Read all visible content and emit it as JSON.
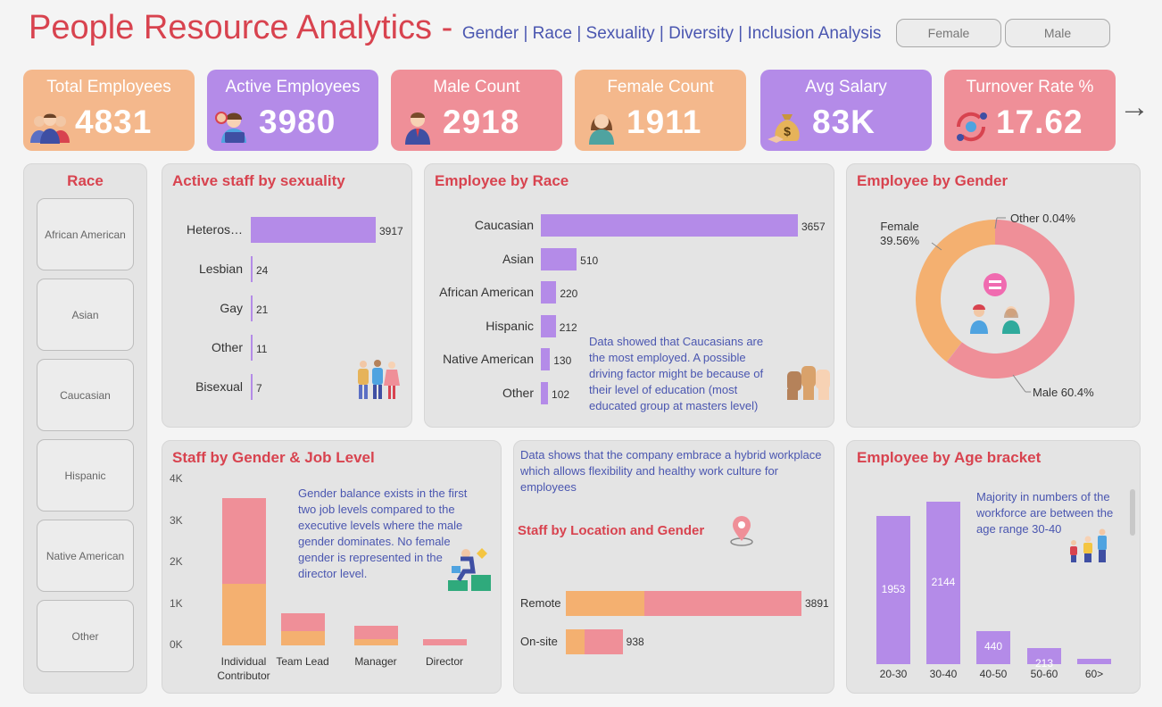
{
  "header": {
    "title": "People Resource Analytics",
    "dash": " - ",
    "subtitle": "Gender | Race | Sexuality | Diversity | Inclusion Analysis",
    "gender_slicer": [
      "Female",
      "Male"
    ]
  },
  "kpis": [
    {
      "label": "Total Employees",
      "value": "4831",
      "color": "#f4b88c",
      "icon": "team-icon"
    },
    {
      "label": "Active Employees",
      "value": "3980",
      "color": "#b48be8",
      "icon": "working-employee-icon"
    },
    {
      "label": "Male Count",
      "value": "2918",
      "color": "#ef8f98",
      "icon": "male-person-icon"
    },
    {
      "label": "Female Count",
      "value": "1911",
      "color": "#f4b88c",
      "icon": "female-person-icon"
    },
    {
      "label": "Avg Salary",
      "value": "83K",
      "color": "#b48be8",
      "icon": "money-bag-icon"
    },
    {
      "label": "Turnover Rate %",
      "value": "17.62",
      "color": "#ef8f98",
      "icon": "turnover-cycle-icon"
    }
  ],
  "next_arrow": "→",
  "race_slicer": {
    "title": "Race",
    "items": [
      "African American",
      "Asian",
      "Caucasian",
      "Hispanic",
      "Native American",
      "Other"
    ]
  },
  "sexuality": {
    "title": "Active staff by sexuality",
    "chart_data": {
      "type": "bar",
      "orientation": "horizontal",
      "categories": [
        "Heteros…",
        "Lesbian",
        "Gay",
        "Other",
        "Bisexual"
      ],
      "values": [
        3917,
        24,
        21,
        11,
        7
      ],
      "color": "#b48be8"
    }
  },
  "race": {
    "title": "Employee by Race",
    "chart_data": {
      "type": "bar",
      "orientation": "horizontal",
      "categories": [
        "Caucasian",
        "Asian",
        "African American",
        "Hispanic",
        "Native American",
        "Other"
      ],
      "values": [
        3657,
        510,
        220,
        212,
        130,
        102
      ],
      "color": "#b48be8"
    },
    "note": "Data showed that Caucasians are the most employed. A possible driving factor might be because of their level of education (most educated group at masters level)"
  },
  "gender": {
    "title": "Employee by Gender",
    "chart_data": {
      "type": "pie",
      "variant": "donut",
      "categories": [
        "Female",
        "Male",
        "Other"
      ],
      "values": [
        39.56,
        60.4,
        0.04
      ],
      "colors": [
        "#f4b070",
        "#ef8f98",
        "#b48be8"
      ]
    },
    "labels": {
      "female_name": "Female",
      "female_pct": "39.56%",
      "male": "Male 60.4%",
      "other": "Other 0.04%"
    }
  },
  "joblevel": {
    "title": "Staff by Gender & Job Level",
    "chart_data": {
      "type": "bar",
      "stacked": true,
      "categories": [
        "Individual Contributor",
        "Team Lead",
        "Manager",
        "Director"
      ],
      "category_lines": [
        [
          "Individual",
          "Contributor"
        ],
        [
          "Team Lead"
        ],
        [
          "Manager"
        ],
        [
          "Director"
        ]
      ],
      "series": [
        {
          "values": [
            1480,
            350,
            140,
            0
          ],
          "color": "#f4b070"
        },
        {
          "values": [
            2070,
            430,
            330,
            150
          ],
          "color": "#ef8f98"
        }
      ],
      "ylim": [
        0,
        4000
      ],
      "yticks": [
        {
          "v": 0,
          "label": "0K"
        },
        {
          "v": 1000,
          "label": "1K"
        },
        {
          "v": 2000,
          "label": "2K"
        },
        {
          "v": 3000,
          "label": "3K"
        },
        {
          "v": 4000,
          "label": "4K"
        }
      ]
    },
    "note": "Gender balance exists in the first two job levels compared to the executive levels where the male gender dominates. No female gender is represented in the director level."
  },
  "location": {
    "note": "Data shows that the company embrace a hybrid workplace which allows flexibility and healthy work culture for employees",
    "title": "Staff by Location and Gender",
    "chart_data": {
      "type": "bar",
      "orientation": "horizontal",
      "stacked": true,
      "categories": [
        "Remote",
        "On-site"
      ],
      "series": [
        {
          "values": [
            1300,
            308
          ],
          "color": "#f4b070"
        },
        {
          "values": [
            2591,
            630
          ],
          "color": "#ef8f98"
        }
      ],
      "totals": [
        3891,
        938
      ]
    }
  },
  "age": {
    "title": "Employee by Age bracket",
    "chart_data": {
      "type": "bar",
      "categories": [
        "20-30",
        "30-40",
        "40-50",
        "50-60",
        "60>"
      ],
      "values": [
        1953,
        2144,
        440,
        213,
        70
      ],
      "labels": [
        "1953",
        "2144",
        "440",
        "213",
        ""
      ],
      "color": "#b48be8"
    },
    "note": "Majority in numbers of the workforce are between the age range 30-40"
  }
}
